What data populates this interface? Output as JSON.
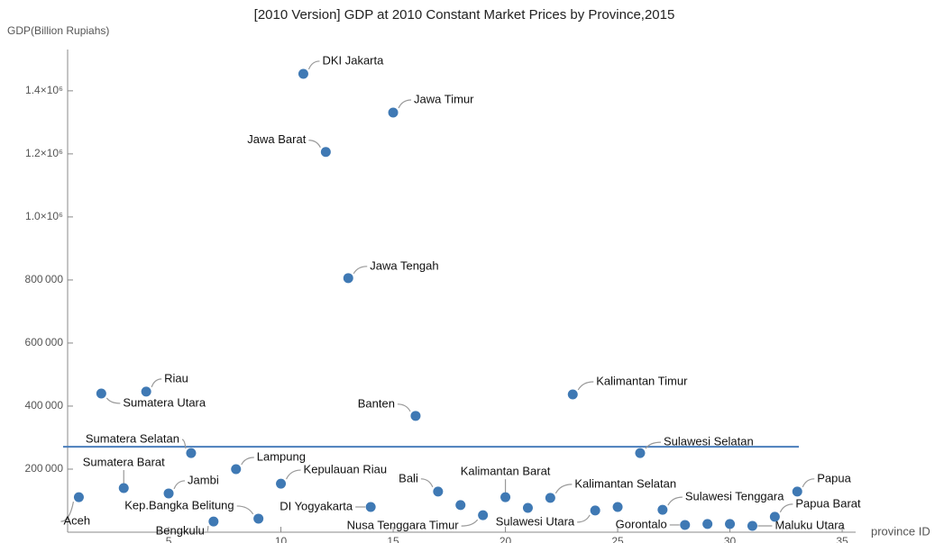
{
  "chart_data": {
    "type": "scatter",
    "title": "[2010 Version] GDP at 2010 Constant Market Prices by Province,2015",
    "y_label": "GDP(Billion Rupiahs)",
    "x_label": "province ID",
    "color": "#3f79b4",
    "x": [
      1,
      2,
      3,
      4,
      5,
      6,
      7,
      8,
      9,
      10,
      11,
      12,
      13,
      14,
      15,
      16,
      17,
      18,
      19,
      20,
      21,
      22,
      23,
      24,
      25,
      26,
      27,
      28,
      29,
      30,
      31,
      32,
      33
    ],
    "values": [
      111000,
      440000,
      140000,
      446000,
      123000,
      251000,
      34000,
      200000,
      43000,
      154000,
      1454000,
      1206000,
      806000,
      80000,
      1331000,
      369000,
      129000,
      86000,
      54000,
      111000,
      77000,
      109000,
      437000,
      69000,
      80000,
      251000,
      71000,
      23000,
      26000,
      26000,
      20000,
      49000,
      129000
    ],
    "labels": [
      "Aceh",
      "Sumatera Utara",
      "Sumatera Barat",
      "Riau",
      "Jambi",
      "Sumatera Selatan",
      "Bengkulu",
      "Lampung",
      "Kep.Bangka Belitung",
      "Kepulauan Riau",
      "DKI Jakarta",
      "Jawa Barat",
      "Jawa Tengah",
      "DI Yogyakarta",
      "Jawa Timur",
      "Banten",
      "Bali",
      null,
      "Nusa Tenggara Timur",
      "Kalimantan Barat",
      null,
      "Kalimantan Selatan",
      "Kalimantan Timur",
      "Sulawesi Utara",
      null,
      "Sulawesi Selatan",
      "Sulawesi Tenggara",
      "Gorontalo",
      null,
      null,
      "Maluku Utara",
      "Papua Barat",
      "Papua"
    ],
    "reference_line": 271000,
    "reference_color": "#4a7ebb",
    "xlim": [
      0.5,
      35.6
    ],
    "ylim": [
      0,
      1531000
    ],
    "xticks": [
      5,
      10,
      15,
      20,
      25,
      30,
      35
    ],
    "yticks": [
      {
        "value": 200000,
        "label": "200 000"
      },
      {
        "value": 400000,
        "label": "400 000"
      },
      {
        "value": 600000,
        "label": "600 000"
      },
      {
        "value": 800000,
        "label": "800 000"
      },
      {
        "value": 1000000,
        "label": "1.0×10⁶"
      },
      {
        "value": 1200000,
        "label": "1.2×10⁶"
      },
      {
        "value": 1400000,
        "label": "1.4×10⁶"
      }
    ]
  }
}
